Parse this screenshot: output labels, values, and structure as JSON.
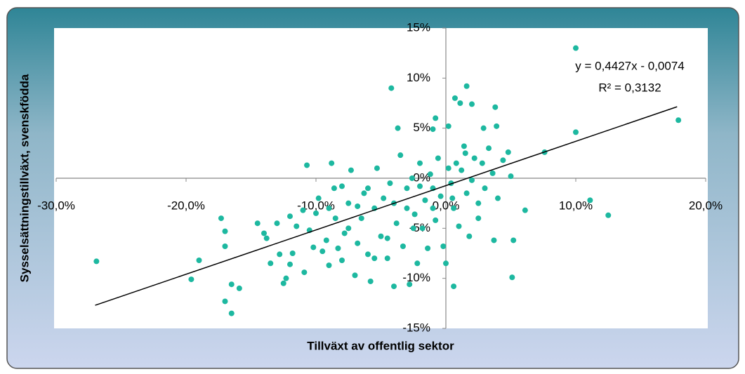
{
  "chart_data": {
    "type": "scatter",
    "x_label": "Tillväxt av offentlig sektor",
    "y_label": "Sysselsättningstillväxt, svenskfödda",
    "xlim": [
      -30,
      20
    ],
    "ylim": [
      -15,
      15
    ],
    "xticks": [
      {
        "value": -30,
        "label": "-30,0%"
      },
      {
        "value": -20,
        "label": "-20,0%"
      },
      {
        "value": -10,
        "label": "-10,0%"
      },
      {
        "value": 0,
        "label": "0,0%"
      },
      {
        "value": 10,
        "label": "10,0%"
      },
      {
        "value": 20,
        "label": "20,0%"
      }
    ],
    "yticks": [
      {
        "value": -15,
        "label": "-15%"
      },
      {
        "value": -10,
        "label": "-10%"
      },
      {
        "value": -5,
        "label": "-5%"
      },
      {
        "value": 0,
        "label": "0%"
      },
      {
        "value": 5,
        "label": "5%"
      },
      {
        "value": 10,
        "label": "10%"
      },
      {
        "value": 15,
        "label": "15%"
      }
    ],
    "x": [
      -26.9,
      -19.6,
      -19.0,
      -17.3,
      -17.0,
      -17.0,
      -17.0,
      -16.5,
      -16.5,
      -15.9,
      -4.2,
      -0.8,
      -3.7,
      6.1,
      11.1,
      12.5,
      10.0,
      10.0,
      17.9,
      7.6,
      5.1,
      5.2,
      0.6,
      3.7,
      1.6,
      0.7,
      1.1,
      2.0,
      3.8,
      -1.0,
      0.2,
      2.9,
      3.9,
      -14.5,
      -14.0,
      -13.8,
      -13.5,
      -13.0,
      -12.8,
      -12.5,
      -12.3,
      -12.0,
      -11.8,
      -11.5,
      -11.0,
      -10.9,
      -10.7,
      -10.5,
      -10.2,
      -10.0,
      -9.8,
      -9.5,
      -9.2,
      -9.0,
      -8.8,
      -8.6,
      -8.5,
      -8.3,
      -8.0,
      -7.8,
      -7.5,
      -7.3,
      -7.0,
      -6.8,
      -6.5,
      -6.3,
      -6.0,
      -5.8,
      -5.5,
      -5.3,
      -5.0,
      -4.8,
      -4.5,
      -4.3,
      -4.0,
      -3.8,
      -3.5,
      -3.3,
      -3.0,
      -2.8,
      -2.6,
      -2.4,
      -2.2,
      -2.0,
      -1.8,
      -1.6,
      -1.4,
      -1.2,
      -1.0,
      -0.8,
      -0.6,
      -0.4,
      -0.2,
      0.0,
      0.2,
      0.4,
      0.6,
      0.8,
      1.0,
      1.2,
      1.4,
      1.6,
      1.8,
      2.0,
      2.2,
      2.5,
      2.8,
      3.0,
      3.3,
      3.6,
      4.0,
      4.4,
      4.8,
      5.0,
      -9.0,
      -7.5,
      -6.0,
      -4.5,
      -3.0,
      -2.0,
      -1.0,
      0.5,
      -12.0,
      -8.0,
      -5.5,
      -6.8,
      -4.0,
      -2.5,
      1.5,
      2.5
    ],
    "series": [
      {
        "color": "#1db8a0",
        "values": [
          -8.3,
          -10.1,
          -8.2,
          -4.0,
          -5.3,
          -6.8,
          -12.3,
          -13.5,
          -10.6,
          -11.0,
          9.0,
          6.0,
          5.0,
          -3.2,
          -2.2,
          -3.7,
          13.0,
          4.6,
          5.8,
          2.6,
          -9.9,
          -6.2,
          -10.8,
          -6.2,
          9.2,
          8.0,
          7.5,
          7.4,
          7.1,
          4.9,
          5.2,
          5.0,
          5.2,
          -4.5,
          -5.5,
          -6.0,
          -8.5,
          -4.5,
          -7.6,
          -10.5,
          -10.0,
          -8.6,
          -7.5,
          -4.8,
          -3.2,
          -9.4,
          1.3,
          -5.2,
          -6.9,
          -3.5,
          -2.0,
          -7.3,
          -6.2,
          -8.7,
          1.5,
          -1.0,
          -4.0,
          -7.0,
          -8.2,
          -5.5,
          -2.5,
          0.8,
          -9.7,
          -6.5,
          -4.0,
          -1.5,
          -7.6,
          -10.3,
          -3.0,
          1.0,
          -5.8,
          -2.0,
          -8.0,
          -0.5,
          -10.8,
          -4.5,
          2.3,
          -6.8,
          -1.0,
          -10.6,
          0.0,
          -3.6,
          -8.5,
          1.5,
          -5.0,
          -2.2,
          -7.0,
          0.4,
          -3.0,
          -4.2,
          2.0,
          -1.8,
          -6.8,
          -8.5,
          1.0,
          -0.5,
          -3.0,
          1.5,
          -4.8,
          0.8,
          3.2,
          -1.5,
          -5.8,
          -0.2,
          2.0,
          -2.5,
          1.5,
          -1.0,
          3.0,
          0.5,
          -2.0,
          1.8,
          2.6,
          0.2,
          -3.0,
          -5.0,
          -1.0,
          -6.0,
          -3.0,
          -0.8,
          -1.0,
          -2.0,
          -3.8,
          -0.8,
          -8.0,
          -2.8,
          -2.5,
          -5.0,
          2.5,
          -4.0
        ]
      }
    ],
    "trendline": {
      "equation": "y = 0,4427x - 0,0074",
      "r_squared": "R² = 0,3132",
      "color": "#000000",
      "x": [
        -27,
        17.8
      ],
      "y": [
        -12.69,
        7.14
      ]
    }
  }
}
